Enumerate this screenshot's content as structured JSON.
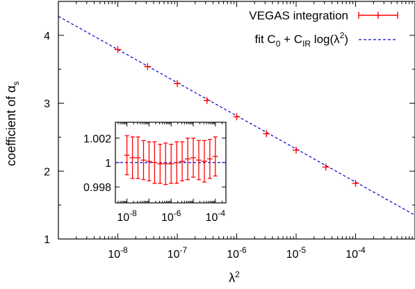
{
  "chart_data": [
    {
      "type": "scatter",
      "x_scale": "log",
      "xlabel": "λ²",
      "ylabel": "coefficient of αs",
      "xlim": [
        1e-09,
        0.001
      ],
      "ylim": [
        1,
        4.5
      ],
      "x_ticks": [
        {
          "value": 1e-08,
          "base": "10",
          "exp": "-8"
        },
        {
          "value": 1e-07,
          "base": "10",
          "exp": "-7"
        },
        {
          "value": 1e-06,
          "base": "10",
          "exp": "-6"
        },
        {
          "value": 1e-05,
          "base": "10",
          "exp": "-5"
        },
        {
          "value": 0.0001,
          "base": "10",
          "exp": "-4"
        }
      ],
      "y_ticks": [
        1,
        2,
        3,
        4
      ],
      "grid": false,
      "legend_position": "top-right",
      "series": [
        {
          "name": "VEGAS integration",
          "color": "#ff0000",
          "style": "points-with-errorbars",
          "x": [
            1e-08,
            3.16e-08,
            1e-07,
            3.16e-07,
            1e-06,
            3.16e-06,
            1e-05,
            3.16e-05,
            0.0001
          ],
          "y": [
            3.79,
            3.54,
            3.29,
            3.04,
            2.8,
            2.55,
            2.31,
            2.06,
            1.82
          ]
        },
        {
          "name": "fit C0 + CIR log(λ²)",
          "color": "#0000cc",
          "style": "dashed-line",
          "x": [
            1e-09,
            0.001
          ],
          "y": [
            4.28,
            1.35
          ]
        }
      ],
      "legend": [
        {
          "label": "VEGAS integration"
        },
        {
          "prefix": "fit C",
          "sub1": "0",
          "mid": " + C",
          "sub2": "IR",
          "tail": " log(λ",
          "sup": "2",
          "end": ")"
        }
      ]
    },
    {
      "type": "scatter",
      "x_scale": "log",
      "xlim": [
        3e-09,
        0.0003
      ],
      "ylim": [
        0.9967,
        1.0033
      ],
      "y_ticks": [
        "1.002",
        "1",
        "0.998"
      ],
      "x_ticks": [
        {
          "value": 1e-08,
          "base": "10",
          "exp": "-8"
        },
        {
          "value": 1e-06,
          "base": "10",
          "exp": "-6"
        },
        {
          "value": 0.0001,
          "base": "10",
          "exp": "-4"
        }
      ],
      "fit_value": 1.0,
      "series": [
        {
          "name": "VEGAS integration",
          "color": "#ff0000",
          "x": [
            1e-08,
            1.78e-08,
            3.16e-08,
            5.62e-08,
            1e-07,
            1.78e-07,
            3.16e-07,
            5.62e-07,
            1e-06,
            1.78e-06,
            3.16e-06,
            5.62e-06,
            1e-05,
            1.78e-05,
            3.16e-05,
            5.62e-05,
            0.0001
          ],
          "y": [
            1.0006,
            1.0004,
            1.0004,
            1.0002,
            1.0001,
            1.0,
            0.9999,
            0.9999,
            0.9999,
            1.0,
            1.0001,
            1.0003,
            1.0004,
            1.0002,
            1.0001,
            1.0003,
            1.0005
          ],
          "err": [
            0.0016,
            0.0017,
            0.0017,
            0.0016,
            0.0016,
            0.0017,
            0.0016,
            0.0017,
            0.0016,
            0.0017,
            0.0016,
            0.0017,
            0.0016,
            0.0016,
            0.0017,
            0.0016,
            0.0016
          ]
        }
      ]
    }
  ]
}
